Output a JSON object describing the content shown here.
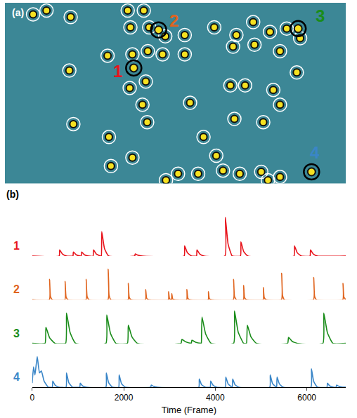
{
  "chart_data": [
    {
      "type": "scatter",
      "label": "(a)",
      "tick_labels": false,
      "xlim": [
        0,
        508
      ],
      "ylim": [
        280,
        0
      ],
      "rois": {
        "x": [
          42,
          62,
          98,
          183,
          207,
          187,
          215,
          239,
          268,
          312,
          345,
          370,
          395,
          420,
          440,
          96,
          153,
          190,
          213,
          235,
          268,
          340,
          372,
          410,
          435,
          210,
          186,
          205,
          276,
          336,
          358,
          400,
          410,
          102,
          155,
          212,
          296,
          342,
          385,
          315,
          190,
          258,
          288,
          325,
          350,
          382,
          392,
          410,
          240,
          158
        ],
        "y": [
          18,
          12,
          22,
          12,
          12,
          38,
          38,
          52,
          50,
          38,
          50,
          30,
          45,
          40,
          55,
          105,
          82,
          80,
          75,
          80,
          80,
          68,
          65,
          75,
          108,
          122,
          132,
          158,
          155,
          128,
          128,
          135,
          158,
          188,
          208,
          185,
          208,
          180,
          185,
          237,
          240,
          265,
          265,
          260,
          265,
          262,
          275,
          270,
          275,
          253
        ]
      },
      "highlighted": [
        {
          "name": "1",
          "color": "#e8141c",
          "x": 192,
          "y": 101,
          "label_x": 168,
          "label_y": 106
        },
        {
          "name": "2",
          "color": "#e0641e",
          "x": 229,
          "y": 42,
          "label_x": 252,
          "label_y": 28
        },
        {
          "name": "3",
          "color": "#1a8c1a",
          "x": 437,
          "y": 40,
          "label_x": 470,
          "label_y": 20
        },
        {
          "name": "4",
          "color": "#3a86c8",
          "x": 457,
          "y": 262,
          "label_x": 462,
          "label_y": 232
        }
      ]
    },
    {
      "type": "line",
      "label": "(b)",
      "x_label": "Time (Frame)",
      "tick_labels": "x",
      "xlim": [
        0,
        6850
      ],
      "xticks": [
        0,
        2000,
        4000,
        6000
      ],
      "ylim": [
        0,
        1
      ],
      "series": [
        {
          "name": "1",
          "color": "#e8141c",
          "x": [
            0,
            590,
            600,
            660,
            750,
            890,
            900,
            960,
            1050,
            1070,
            1080,
            1140,
            1230,
            1330,
            1340,
            1400,
            1490,
            1510,
            1520,
            1580,
            1670,
            2240,
            2250,
            2310,
            2400,
            3320,
            3330,
            3390,
            3480,
            3590,
            3600,
            3660,
            3750,
            4210,
            4220,
            4280,
            4370,
            4550,
            4560,
            4620,
            4710,
            5720,
            5730,
            5790,
            5880,
            6070,
            6080,
            6140,
            6230,
            6850
          ],
          "y": [
            0,
            0,
            0.15,
            0.05,
            0,
            0,
            0.1,
            0.03,
            0,
            0,
            0.1,
            0.03,
            0,
            0,
            0.15,
            0.05,
            0,
            0,
            0.6,
            0.18,
            0,
            0,
            0.05,
            0.02,
            0,
            0,
            0.25,
            0.08,
            0,
            0,
            0.15,
            0.05,
            0,
            0,
            0.95,
            0.29,
            0,
            0,
            0.35,
            0.11,
            0,
            0,
            0.25,
            0.08,
            0,
            0,
            0.15,
            0.05,
            0,
            0
          ]
        },
        {
          "name": "2",
          "color": "#e0641e",
          "x": [
            0,
            375,
            380,
            400,
            440,
            715,
            720,
            740,
            780,
            1175,
            1180,
            1200,
            1240,
            1655,
            1660,
            1680,
            1720,
            2095,
            2100,
            2120,
            2160,
            2475,
            2480,
            2500,
            2540,
            2975,
            2980,
            3000,
            3040,
            3045,
            3050,
            3070,
            3110,
            3375,
            3380,
            3400,
            3440,
            3845,
            3850,
            3870,
            3910,
            4395,
            4400,
            4420,
            4460,
            4615,
            4620,
            4640,
            4680,
            5045,
            5050,
            5070,
            5110,
            5445,
            5450,
            5470,
            5510,
            6145,
            6150,
            6170,
            6210,
            6785,
            6790,
            6810,
            6850
          ],
          "y": [
            0,
            0,
            0.5,
            0.08,
            0,
            0,
            0.45,
            0.07,
            0,
            0,
            0.5,
            0.08,
            0,
            0,
            0.75,
            0.11,
            0,
            0,
            0.4,
            0.06,
            0,
            0,
            0.25,
            0.04,
            0,
            0,
            0.2,
            0.03,
            0,
            0,
            0.15,
            0.02,
            0,
            0,
            0.25,
            0.04,
            0,
            0,
            0.2,
            0.03,
            0,
            0,
            0.5,
            0.08,
            0,
            0,
            0.35,
            0.05,
            0,
            0,
            0.3,
            0.05,
            0,
            0,
            0.65,
            0.1,
            0,
            0,
            0.55,
            0.08,
            0,
            0,
            0.4,
            0.06,
            0
          ]
        },
        {
          "name": "3",
          "color": "#1a8c1a",
          "x": [
            0,
            280,
            300,
            380,
            500,
            730,
            750,
            830,
            950,
            1610,
            1630,
            1710,
            1830,
            2080,
            2100,
            2180,
            2300,
            3250,
            3270,
            3350,
            3470,
            3475,
            3490,
            3570,
            3690,
            3695,
            3710,
            3790,
            3910,
            4400,
            4420,
            4500,
            4620,
            4680,
            4700,
            4780,
            4900,
            5580,
            5600,
            5680,
            5800,
            6350,
            6370,
            6450,
            6570,
            6850
          ],
          "y": [
            0,
            0,
            0.4,
            0.14,
            0,
            0,
            0.75,
            0.26,
            0,
            0,
            0.7,
            0.25,
            0,
            0,
            0.45,
            0.16,
            0,
            0,
            0.1,
            0.04,
            0,
            0,
            0.08,
            0.03,
            0,
            0,
            0.65,
            0.23,
            0,
            0,
            0.8,
            0.28,
            0,
            0,
            0.45,
            0.16,
            0,
            0,
            0.15,
            0.05,
            0,
            0,
            0.75,
            0.26,
            0,
            0
          ]
        },
        {
          "name": "4",
          "color": "#3a86c8",
          "x": [
            0,
            30,
            60,
            110,
            160,
            200,
            260,
            350,
            440,
            450,
            500,
            580,
            740,
            750,
            800,
            880,
            1040,
            1050,
            1100,
            1180,
            1610,
            1620,
            1670,
            1750,
            1890,
            1900,
            1950,
            2030,
            2590,
            2600,
            2650,
            2730,
            3640,
            3650,
            3700,
            3780,
            3890,
            3900,
            3950,
            4030,
            4220,
            4230,
            4280,
            4360,
            4370,
            4380,
            4430,
            4510,
            5190,
            5200,
            5250,
            5330,
            5340,
            5350,
            5400,
            5480,
            6090,
            6100,
            6150,
            6230,
            6440,
            6450,
            6500,
            6580,
            6640,
            6650,
            6700,
            6780,
            6850
          ],
          "y": [
            0.1,
            0.5,
            0.3,
            0.75,
            0.35,
            0.4,
            0.15,
            0,
            0,
            0.15,
            0.05,
            0,
            0,
            0.35,
            0.11,
            0,
            0,
            0.1,
            0.03,
            0,
            0,
            0.35,
            0.11,
            0,
            0,
            0.3,
            0.09,
            0,
            0,
            0.05,
            0.02,
            0,
            0,
            0.2,
            0.06,
            0,
            0,
            0.15,
            0.05,
            0,
            0,
            0.25,
            0.08,
            0,
            0,
            0.2,
            0.06,
            0,
            0,
            0.3,
            0.09,
            0,
            0,
            0.25,
            0.08,
            0,
            0,
            0.45,
            0.14,
            0,
            0,
            0.1,
            0.03,
            0,
            0,
            0.05,
            0.02,
            0,
            0
          ]
        }
      ]
    }
  ]
}
